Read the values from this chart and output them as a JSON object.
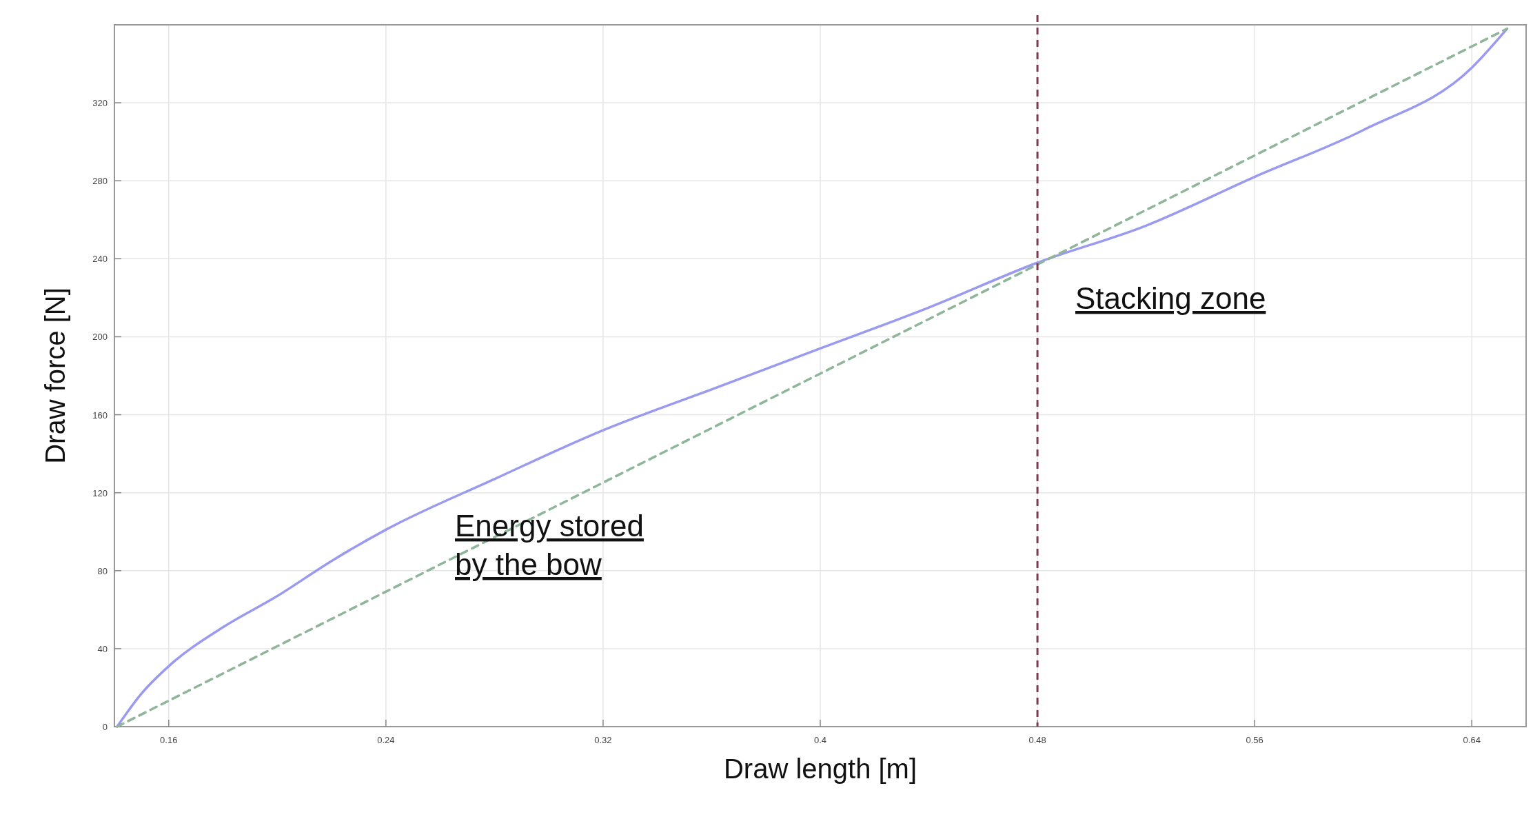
{
  "chart_data": {
    "type": "line",
    "xlabel": "Draw length [m]",
    "ylabel": "Draw force [N]",
    "xlim": [
      0.14,
      0.66
    ],
    "ylim": [
      0,
      360
    ],
    "xticks": [
      0.16,
      0.24,
      0.32,
      0.4,
      0.48,
      0.56,
      0.64
    ],
    "yticks": [
      0,
      40,
      80,
      120,
      160,
      200,
      240,
      280,
      320
    ],
    "grid": true,
    "series": [
      {
        "color": "#9a9af0",
        "line_style": "solid",
        "x": [
          0.141,
          0.15,
          0.16,
          0.18,
          0.2,
          0.22,
          0.24,
          0.28,
          0.32,
          0.36,
          0.4,
          0.44,
          0.48,
          0.52,
          0.56,
          0.6,
          0.64,
          0.653
        ],
        "values": [
          0,
          17,
          31,
          51,
          67,
          85,
          101,
          127,
          152,
          173,
          194,
          215,
          238,
          257,
          282,
          306,
          338,
          358
        ]
      },
      {
        "color": "#8fb59a",
        "line_style": "dashed",
        "x": [
          0.141,
          0.653
        ],
        "values": [
          0,
          358
        ]
      }
    ],
    "ref_lines": [
      {
        "axis": "x",
        "value": 0.48,
        "color": "#7a3b4f",
        "line_style": "dashed"
      }
    ],
    "annotations": [
      "Energy stored\nby the bow",
      "Stacking zone"
    ]
  }
}
